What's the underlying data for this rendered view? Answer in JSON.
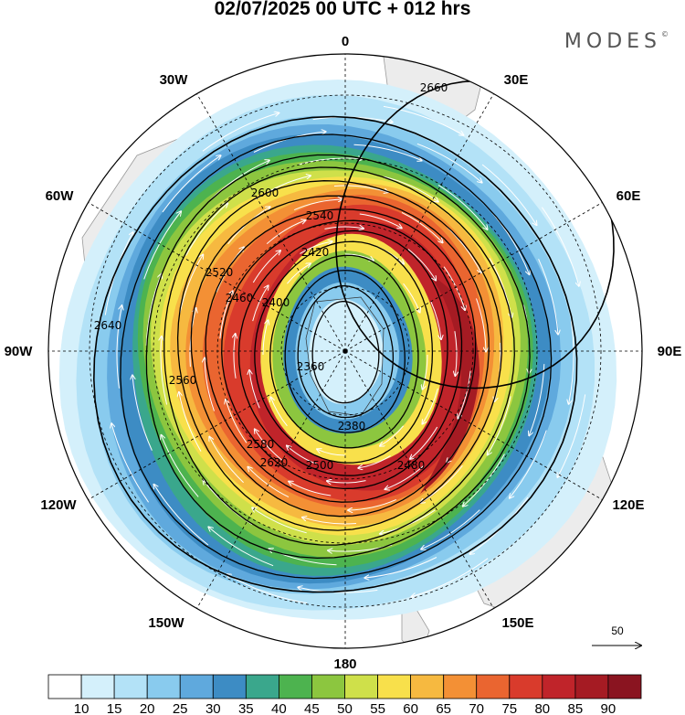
{
  "header": {
    "title": "02/07/2025  00 UTC  + 012 hrs",
    "brand": "MODES",
    "brand_mark": "©"
  },
  "map": {
    "projection": "south-polar-stereographic",
    "longitude_labels": [
      "0",
      "30E",
      "60E",
      "90E",
      "120E",
      "150E",
      "180",
      "150W",
      "120W",
      "90W",
      "60W",
      "30W"
    ],
    "height_contours": [
      {
        "label": "2660"
      },
      {
        "label": "2640"
      },
      {
        "label": "2620"
      },
      {
        "label": "2600"
      },
      {
        "label": "2580"
      },
      {
        "label": "2560"
      },
      {
        "label": "2540"
      },
      {
        "label": "2520"
      },
      {
        "label": "2500"
      },
      {
        "label": "2480"
      },
      {
        "label": "2460"
      },
      {
        "label": "2420"
      },
      {
        "label": "2400"
      },
      {
        "label": "2380"
      },
      {
        "label": "2360"
      }
    ],
    "reference_vector": "50"
  },
  "colorbar": {
    "ticks": [
      "10",
      "15",
      "20",
      "25",
      "30",
      "35",
      "40",
      "45",
      "50",
      "55",
      "60",
      "65",
      "70",
      "75",
      "80",
      "85",
      "90"
    ],
    "colors": [
      "#ffffff",
      "#d4f0fb",
      "#b3e2f7",
      "#89cbee",
      "#5fa9dd",
      "#3d8cc4",
      "#3aa78c",
      "#4db34f",
      "#8cc63f",
      "#cfe04a",
      "#f8e04b",
      "#f6b940",
      "#f39035",
      "#ea6530",
      "#d93b2c",
      "#c0242a",
      "#a51b23",
      "#8a1420"
    ]
  }
}
